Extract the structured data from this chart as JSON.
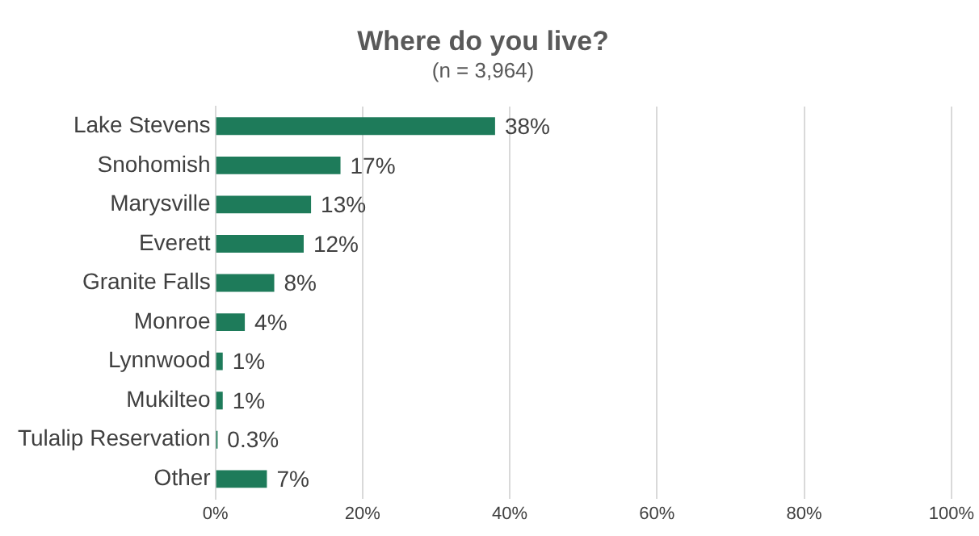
{
  "chart_data": {
    "type": "bar",
    "orientation": "horizontal",
    "title": "Where do you live?",
    "subtitle": "(n = 3,964)",
    "categories": [
      "Lake Stevens",
      "Snohomish",
      "Marysville",
      "Everett",
      "Granite Falls",
      "Monroe",
      "Lynnwood",
      "Mukilteo",
      "Tulalip Reservation",
      "Other"
    ],
    "values": [
      38,
      17,
      13,
      12,
      8,
      4,
      1,
      1,
      0.3,
      7
    ],
    "value_labels": [
      "38%",
      "17%",
      "13%",
      "12%",
      "8%",
      "4%",
      "1%",
      "1%",
      "0.3%",
      "7%"
    ],
    "color": "#1e7b5a",
    "xlim": [
      0,
      100
    ],
    "xticks": [
      {
        "value": 0,
        "label": "0%"
      },
      {
        "value": 20,
        "label": "20%"
      },
      {
        "value": 40,
        "label": "40%"
      },
      {
        "value": 60,
        "label": "60%"
      },
      {
        "value": 80,
        "label": "80%"
      },
      {
        "value": 100,
        "label": "100%"
      }
    ],
    "grid": "x",
    "legend": false
  }
}
